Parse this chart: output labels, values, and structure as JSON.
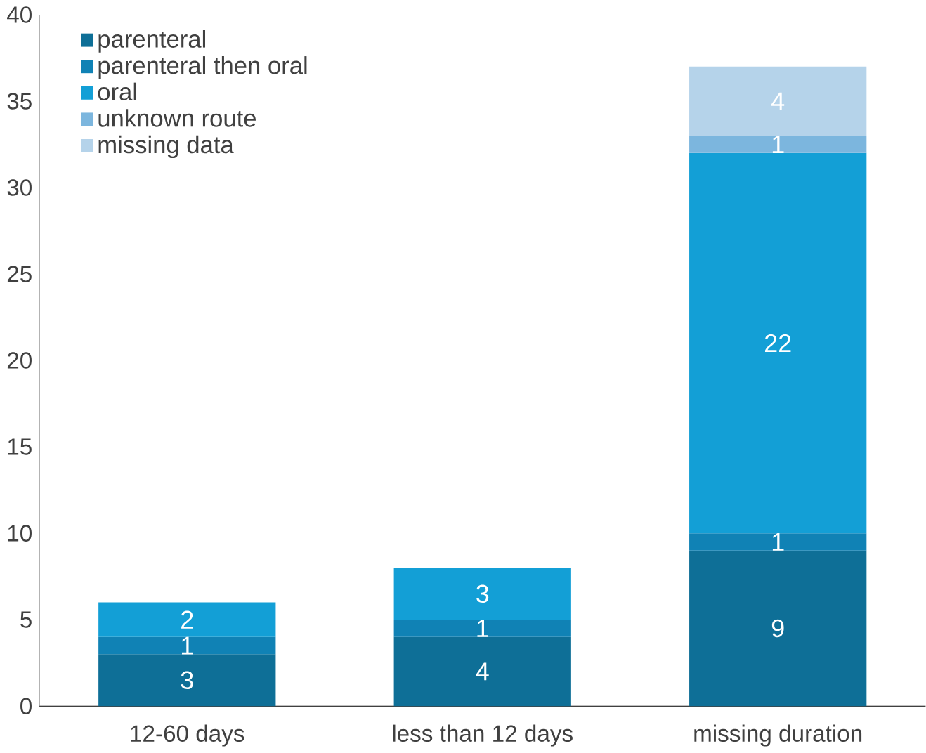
{
  "chart_data": {
    "type": "bar",
    "stacked": true,
    "categories": [
      "12-60 days",
      "less than 12 days",
      "missing duration"
    ],
    "series": [
      {
        "name": "parenteral",
        "color": "#0e6f97",
        "values": [
          3,
          4,
          9
        ]
      },
      {
        "name": "parenteral then oral",
        "color": "#1082b5",
        "values": [
          1,
          1,
          1
        ]
      },
      {
        "name": "oral",
        "color": "#139fd6",
        "values": [
          2,
          3,
          22
        ]
      },
      {
        "name": "unknown route",
        "color": "#7cb6de",
        "values": [
          null,
          null,
          1
        ]
      },
      {
        "name": "missing data",
        "color": "#b5d3ea",
        "values": [
          null,
          null,
          4
        ]
      }
    ],
    "ylim": [
      0,
      40
    ],
    "yticks": [
      0,
      5,
      10,
      15,
      20,
      25,
      30,
      35,
      40
    ],
    "grid": false,
    "legend": "top left",
    "data_labels": true
  }
}
